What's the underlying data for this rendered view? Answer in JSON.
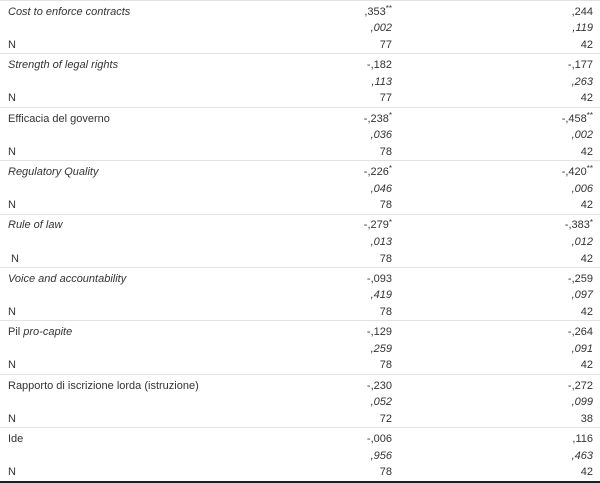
{
  "table": {
    "description": "Correlation table fragment (Pearson r, Sig. 2-tailed, N) with two result columns",
    "text_color": "#333333",
    "separator_color": "#e2e2e2",
    "bottom_border_color": "#1f1f1f",
    "rows": [
      {
        "label": {
          "regular": "",
          "italic": "Cost to enforce contracts"
        },
        "pearson": {
          "c1": ",353",
          "c1_sup": "**",
          "c2": ",244",
          "c2_sup": ""
        },
        "sig": {
          "c1": ",002",
          "c2": ",119"
        },
        "n": {
          "label": "N",
          "c1": "77",
          "c2": "42"
        }
      },
      {
        "label": {
          "regular": "",
          "italic": "Strength of legal rights"
        },
        "pearson": {
          "c1": "-,182",
          "c1_sup": "",
          "c2": "-,177",
          "c2_sup": ""
        },
        "sig": {
          "c1": ",113",
          "c2": ",263"
        },
        "n": {
          "label": "N",
          "c1": "77",
          "c2": "42"
        }
      },
      {
        "label": {
          "regular": "Efficacia del governo",
          "italic": ""
        },
        "pearson": {
          "c1": "-,238",
          "c1_sup": "*",
          "c2": "-,458",
          "c2_sup": "**"
        },
        "sig": {
          "c1": ",036",
          "c2": ",002"
        },
        "n": {
          "label": "N",
          "c1": "78",
          "c2": "42"
        }
      },
      {
        "label": {
          "regular": "",
          "italic": "Regulatory Quality"
        },
        "pearson": {
          "c1": "-,226",
          "c1_sup": "*",
          "c2": "-,420",
          "c2_sup": "**"
        },
        "sig": {
          "c1": ",046",
          "c2": ",006"
        },
        "n": {
          "label": "N",
          "c1": "78",
          "c2": "42"
        }
      },
      {
        "label": {
          "regular": "",
          "italic": "Rule of law"
        },
        "pearson": {
          "c1": "-,279",
          "c1_sup": "*",
          "c2": "-,383",
          "c2_sup": "*"
        },
        "sig": {
          "c1": ",013",
          "c2": ",012"
        },
        "n": {
          "label": " N",
          "c1": "78",
          "c2": "42"
        }
      },
      {
        "label": {
          "regular": "",
          "italic": "Voice and accountability"
        },
        "pearson": {
          "c1": "-,093",
          "c1_sup": "",
          "c2": "-,259",
          "c2_sup": ""
        },
        "sig": {
          "c1": ",419",
          "c2": ",097"
        },
        "n": {
          "label": "N",
          "c1": "78",
          "c2": "42"
        }
      },
      {
        "label": {
          "regular": "Pil ",
          "italic": "pro-capite"
        },
        "pearson": {
          "c1": "-,129",
          "c1_sup": "",
          "c2": "-,264",
          "c2_sup": ""
        },
        "sig": {
          "c1": ",259",
          "c2": ",091"
        },
        "n": {
          "label": "N",
          "c1": "78",
          "c2": "42"
        }
      },
      {
        "label": {
          "regular": "Rapporto di iscrizione lorda (istruzione)",
          "italic": ""
        },
        "pearson": {
          "c1": "-,230",
          "c1_sup": "",
          "c2": "-,272",
          "c2_sup": ""
        },
        "sig": {
          "c1": ",052",
          "c2": ",099"
        },
        "n": {
          "label": "N",
          "c1": "72",
          "c2": "38"
        }
      },
      {
        "label": {
          "regular": "Ide",
          "italic": ""
        },
        "pearson": {
          "c1": "-,006",
          "c1_sup": "",
          "c2": ",116",
          "c2_sup": ""
        },
        "sig": {
          "c1": ",956",
          "c2": ",463"
        },
        "n": {
          "label": "N",
          "c1": "78",
          "c2": "42"
        }
      }
    ]
  }
}
